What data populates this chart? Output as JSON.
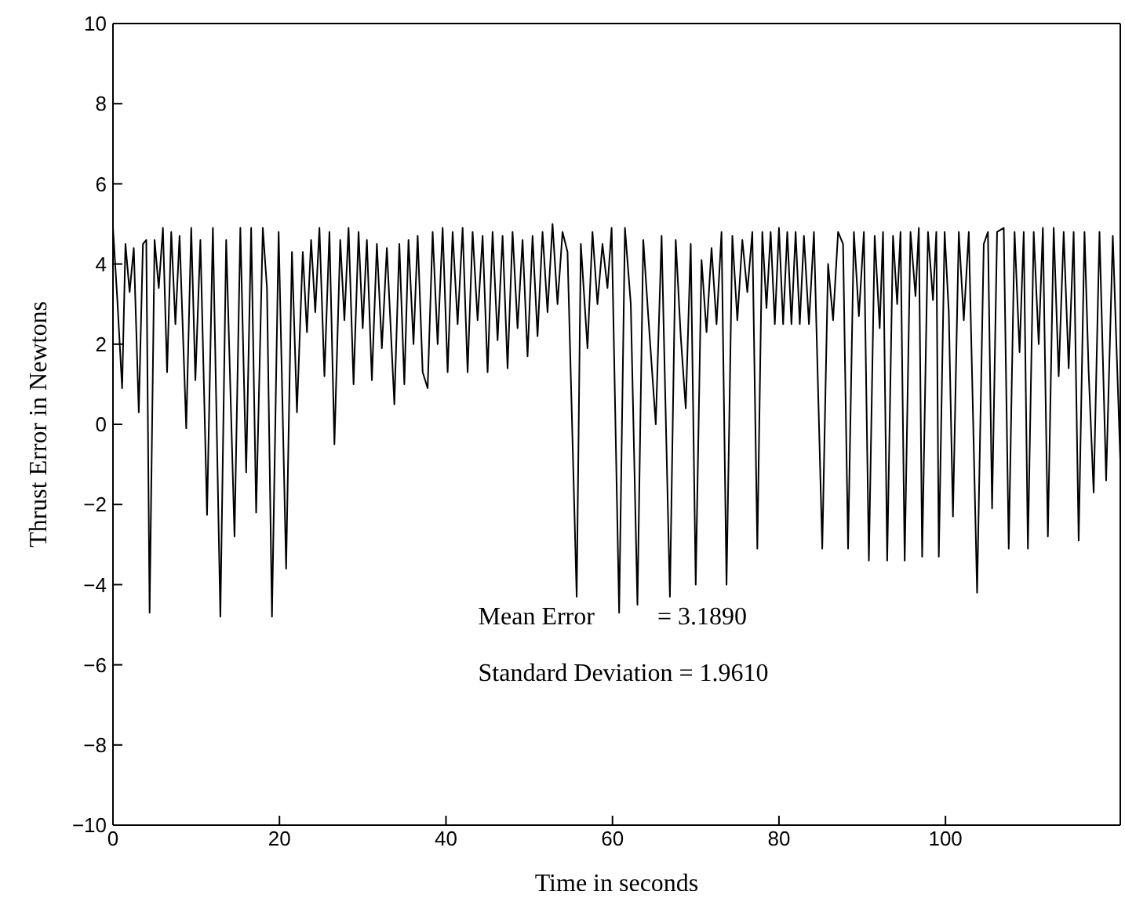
{
  "chart_data": {
    "type": "line",
    "xlabel": "Time in seconds",
    "ylabel": "Thrust Error in Newtons",
    "annotations": [
      "Mean Error          = 3.1890",
      "Standard Deviation = 1.9610"
    ],
    "xlim": [
      0,
      121
    ],
    "xticks": [
      0,
      20,
      40,
      60,
      80,
      100
    ],
    "ylim": [
      -10,
      10
    ],
    "yticks": [
      -10,
      -8,
      -6,
      -4,
      -2,
      0,
      2,
      4,
      6,
      8,
      10
    ],
    "grid": false,
    "legend": false,
    "marker": "none",
    "line_style": "solid",
    "x": [
      0,
      0.5,
      1.1,
      1.5,
      2.0,
      2.5,
      3.1,
      3.6,
      4.0,
      4.4,
      5.0,
      5.5,
      6.0,
      6.5,
      7.0,
      7.5,
      8.0,
      8.8,
      9.4,
      9.9,
      10.5,
      11.3,
      12.0,
      12.9,
      13.6,
      14.6,
      15.3,
      16.0,
      16.6,
      17.2,
      18.0,
      18.5,
      19.1,
      19.9,
      20.8,
      21.5,
      22.1,
      22.8,
      23.3,
      23.8,
      24.3,
      24.8,
      25.4,
      26.0,
      26.6,
      27.3,
      27.8,
      28.3,
      28.9,
      29.5,
      30.0,
      30.5,
      31.1,
      31.7,
      32.3,
      32.9,
      33.8,
      34.4,
      35.0,
      35.5,
      36.1,
      36.6,
      37.2,
      37.8,
      38.4,
      39.0,
      39.6,
      40.2,
      40.8,
      41.4,
      42.0,
      42.6,
      43.2,
      43.8,
      44.4,
      45.0,
      45.6,
      46.2,
      46.8,
      47.4,
      48.0,
      48.6,
      49.2,
      49.8,
      50.4,
      51.0,
      51.6,
      52.2,
      52.8,
      53.4,
      54.0,
      54.6,
      55.7,
      56.2,
      57.0,
      57.6,
      58.2,
      58.8,
      59.4,
      59.9,
      60.8,
      61.5,
      62.2,
      63.0,
      63.7,
      64.3,
      65.2,
      65.9,
      66.9,
      67.6,
      68.2,
      68.8,
      69.4,
      70.0,
      70.7,
      71.3,
      71.9,
      72.5,
      73.1,
      73.7,
      74.4,
      75.0,
      75.6,
      76.2,
      76.8,
      77.4,
      78.0,
      78.5,
      79.0,
      79.5,
      80.0,
      80.5,
      81.0,
      81.5,
      82.0,
      82.5,
      83.0,
      83.6,
      84.2,
      85.2,
      85.9,
      86.5,
      87.1,
      87.7,
      88.3,
      89.0,
      89.6,
      90.2,
      90.8,
      91.5,
      92.1,
      92.5,
      93.0,
      93.7,
      94.2,
      94.6,
      95.1,
      95.8,
      96.4,
      96.8,
      97.2,
      97.9,
      98.5,
      98.9,
      99.2,
      99.9,
      100.4,
      100.9,
      101.6,
      102.2,
      102.8,
      103.8,
      104.6,
      105.1,
      105.6,
      106.2,
      107.0,
      107.6,
      108.3,
      108.9,
      109.4,
      109.9,
      110.6,
      111.2,
      111.7,
      112.3,
      113.0,
      113.6,
      114.2,
      114.8,
      115.4,
      116.0,
      116.7,
      117.2,
      117.8,
      118.5,
      119.3,
      120.1,
      121.0
    ],
    "series": [
      {
        "color": "#000000",
        "values": [
          4.9,
          3.2,
          0.9,
          4.5,
          3.3,
          4.4,
          0.3,
          4.5,
          4.6,
          -4.7,
          4.6,
          3.4,
          4.9,
          1.3,
          4.8,
          2.5,
          4.7,
          -0.1,
          4.9,
          1.1,
          4.6,
          -2.26,
          4.9,
          -4.8,
          4.6,
          -2.8,
          4.9,
          -1.2,
          4.9,
          -2.2,
          4.9,
          3.4,
          -4.8,
          4.8,
          -3.6,
          4.3,
          0.3,
          4.3,
          2.3,
          4.6,
          2.8,
          4.9,
          1.2,
          4.8,
          -0.5,
          4.6,
          2.6,
          4.9,
          1.0,
          4.8,
          2.4,
          4.6,
          1.1,
          4.5,
          1.9,
          4.4,
          0.5,
          4.5,
          1.0,
          4.6,
          2.0,
          4.7,
          1.3,
          0.9,
          4.8,
          2.0,
          4.9,
          1.3,
          4.8,
          2.5,
          4.9,
          1.3,
          4.8,
          2.6,
          4.7,
          1.3,
          4.8,
          2.1,
          4.7,
          1.4,
          4.8,
          2.4,
          4.6,
          1.7,
          4.7,
          2.2,
          4.8,
          2.8,
          5.0,
          3.0,
          4.8,
          4.3,
          -4.3,
          4.5,
          1.9,
          4.8,
          3.0,
          4.5,
          3.4,
          4.9,
          -4.7,
          4.9,
          3.0,
          -4.5,
          4.6,
          2.7,
          0.0,
          4.7,
          -4.3,
          4.6,
          2.2,
          0.4,
          4.5,
          -4.0,
          4.1,
          2.3,
          4.4,
          2.5,
          4.8,
          -4.0,
          4.7,
          2.6,
          4.6,
          3.3,
          4.8,
          -3.1,
          4.8,
          2.9,
          4.8,
          2.5,
          4.9,
          2.5,
          4.8,
          2.5,
          4.8,
          2.5,
          4.7,
          2.5,
          4.8,
          -3.1,
          4.0,
          2.6,
          4.8,
          4.5,
          -3.1,
          4.8,
          2.7,
          4.8,
          -3.4,
          4.7,
          2.4,
          4.8,
          -3.4,
          4.7,
          3.0,
          4.8,
          -3.4,
          4.8,
          3.2,
          4.9,
          -3.3,
          4.8,
          3.1,
          4.8,
          -3.3,
          4.8,
          2.8,
          -2.3,
          4.8,
          2.6,
          4.8,
          -4.2,
          4.5,
          4.8,
          -2.1,
          4.8,
          4.9,
          -3.1,
          4.8,
          1.8,
          4.8,
          -3.1,
          4.8,
          2.0,
          4.9,
          -2.8,
          4.9,
          1.2,
          4.8,
          1.4,
          4.8,
          -2.9,
          4.8,
          1.3,
          -1.7,
          4.8,
          -1.4,
          4.7,
          -0.9
        ]
      }
    ]
  }
}
